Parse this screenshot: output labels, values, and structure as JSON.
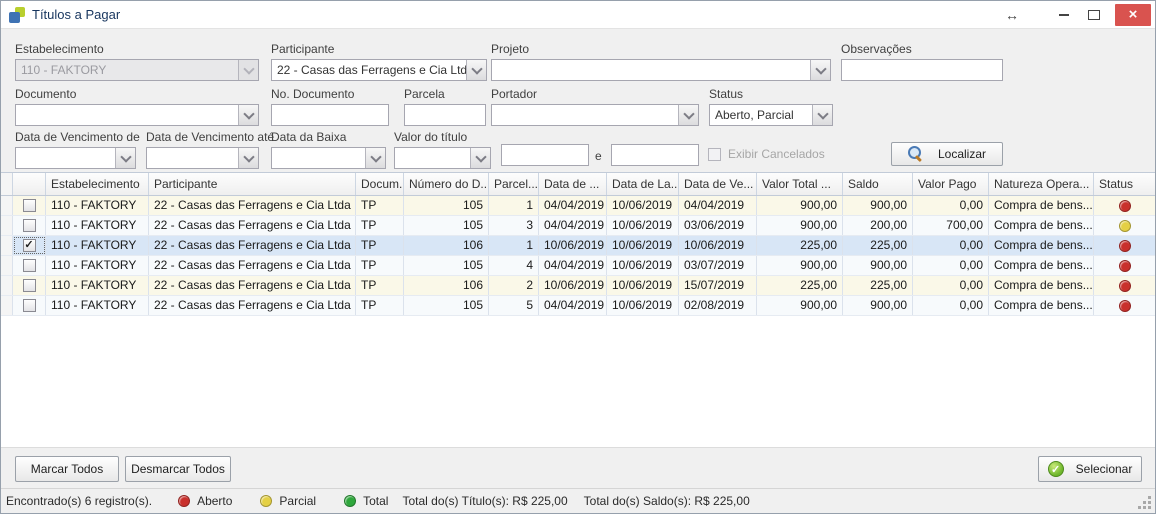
{
  "window": {
    "title": "Títulos a Pagar",
    "controls": {
      "arrows": "↔",
      "close": "×"
    }
  },
  "filters": {
    "estabelecimento": {
      "label": "Estabelecimento",
      "value": "110 - FAKTORY"
    },
    "participante": {
      "label": "Participante",
      "value": "22 - Casas das Ferragens e Cia Ltda ..."
    },
    "projeto": {
      "label": "Projeto",
      "value": ""
    },
    "observacoes": {
      "label": "Observações",
      "value": ""
    },
    "documento": {
      "label": "Documento",
      "value": ""
    },
    "no_documento": {
      "label": "No. Documento",
      "value": ""
    },
    "parcela": {
      "label": "Parcela",
      "value": ""
    },
    "portador": {
      "label": "Portador",
      "value": ""
    },
    "status": {
      "label": "Status",
      "value": "Aberto, Parcial"
    },
    "venc_de": {
      "label": "Data de Vencimento de",
      "value": ""
    },
    "venc_ate": {
      "label": "Data de Vencimento até",
      "value": ""
    },
    "baixa": {
      "label": "Data da Baixa",
      "value": ""
    },
    "valor_titulo": {
      "label": "Valor do título",
      "value": ""
    },
    "valor_1": "",
    "e_label": "e",
    "valor_2": "",
    "exibir_cancelados": "Exibir Cancelados",
    "localizar": "Localizar"
  },
  "grid": {
    "columns": [
      "Estabelecimento",
      "Participante",
      "Docum...",
      "Número do D...",
      "Parcel...",
      "Data de ...",
      "Data de La...",
      "Data de Ve...",
      "Valor Total ...",
      "Saldo",
      "Valor Pago",
      "Natureza Opera...",
      "Status"
    ],
    "rows": [
      {
        "checked": false,
        "estabelecimento": "110 - FAKTORY",
        "participante": "22 - Casas das Ferragens e Cia Ltda",
        "documento": "TP",
        "numero": "105",
        "parcela": "1",
        "data_emissao": "04/04/2019",
        "data_lancamento": "10/06/2019",
        "data_vencimento": "04/04/2019",
        "valor_total": "900,00",
        "saldo": "900,00",
        "valor_pago": "0,00",
        "natureza": "Compra de bens...",
        "status": "aberto"
      },
      {
        "checked": false,
        "estabelecimento": "110 - FAKTORY",
        "participante": "22 - Casas das Ferragens e Cia Ltda",
        "documento": "TP",
        "numero": "105",
        "parcela": "3",
        "data_emissao": "04/04/2019",
        "data_lancamento": "10/06/2019",
        "data_vencimento": "03/06/2019",
        "valor_total": "900,00",
        "saldo": "200,00",
        "valor_pago": "700,00",
        "natureza": "Compra de bens...",
        "status": "parcial"
      },
      {
        "checked": true,
        "estabelecimento": "110 - FAKTORY",
        "participante": "22 - Casas das Ferragens e Cia Ltda",
        "documento": "TP",
        "numero": "106",
        "parcela": "1",
        "data_emissao": "10/06/2019",
        "data_lancamento": "10/06/2019",
        "data_vencimento": "10/06/2019",
        "valor_total": "225,00",
        "saldo": "225,00",
        "valor_pago": "0,00",
        "natureza": "Compra de bens...",
        "status": "aberto"
      },
      {
        "checked": false,
        "estabelecimento": "110 - FAKTORY",
        "participante": "22 - Casas das Ferragens e Cia Ltda",
        "documento": "TP",
        "numero": "105",
        "parcela": "4",
        "data_emissao": "04/04/2019",
        "data_lancamento": "10/06/2019",
        "data_vencimento": "03/07/2019",
        "valor_total": "900,00",
        "saldo": "900,00",
        "valor_pago": "0,00",
        "natureza": "Compra de bens...",
        "status": "aberto"
      },
      {
        "checked": false,
        "estabelecimento": "110 - FAKTORY",
        "participante": "22 - Casas das Ferragens e Cia Ltda",
        "documento": "TP",
        "numero": "106",
        "parcela": "2",
        "data_emissao": "10/06/2019",
        "data_lancamento": "10/06/2019",
        "data_vencimento": "15/07/2019",
        "valor_total": "225,00",
        "saldo": "225,00",
        "valor_pago": "0,00",
        "natureza": "Compra de bens...",
        "status": "aberto"
      },
      {
        "checked": false,
        "estabelecimento": "110 - FAKTORY",
        "participante": "22 - Casas das Ferragens e Cia Ltda",
        "documento": "TP",
        "numero": "105",
        "parcela": "5",
        "data_emissao": "04/04/2019",
        "data_lancamento": "10/06/2019",
        "data_vencimento": "02/08/2019",
        "valor_total": "900,00",
        "saldo": "900,00",
        "valor_pago": "0,00",
        "natureza": "Compra de bens...",
        "status": "aberto"
      }
    ]
  },
  "footer": {
    "marcar": "Marcar Todos",
    "desmarcar": "Desmarcar Todos",
    "selecionar": "Selecionar"
  },
  "statusbar": {
    "found": "Encontrado(s) 6 registro(s).",
    "legend": [
      {
        "label": "Aberto",
        "color": "#c9302c"
      },
      {
        "label": "Parcial",
        "color": "#e4d044"
      },
      {
        "label": "Total",
        "color": "#2fa73c"
      }
    ],
    "total_titulos": "Total do(s) Título(s): R$ 225,00",
    "total_saldos": "Total do(s) Saldo(s): R$ 225,00"
  },
  "colors": {
    "status_aberto": "#c9302c",
    "status_parcial": "#e4d044",
    "status_total": "#2fa73c",
    "close_button": "#d9534f"
  }
}
